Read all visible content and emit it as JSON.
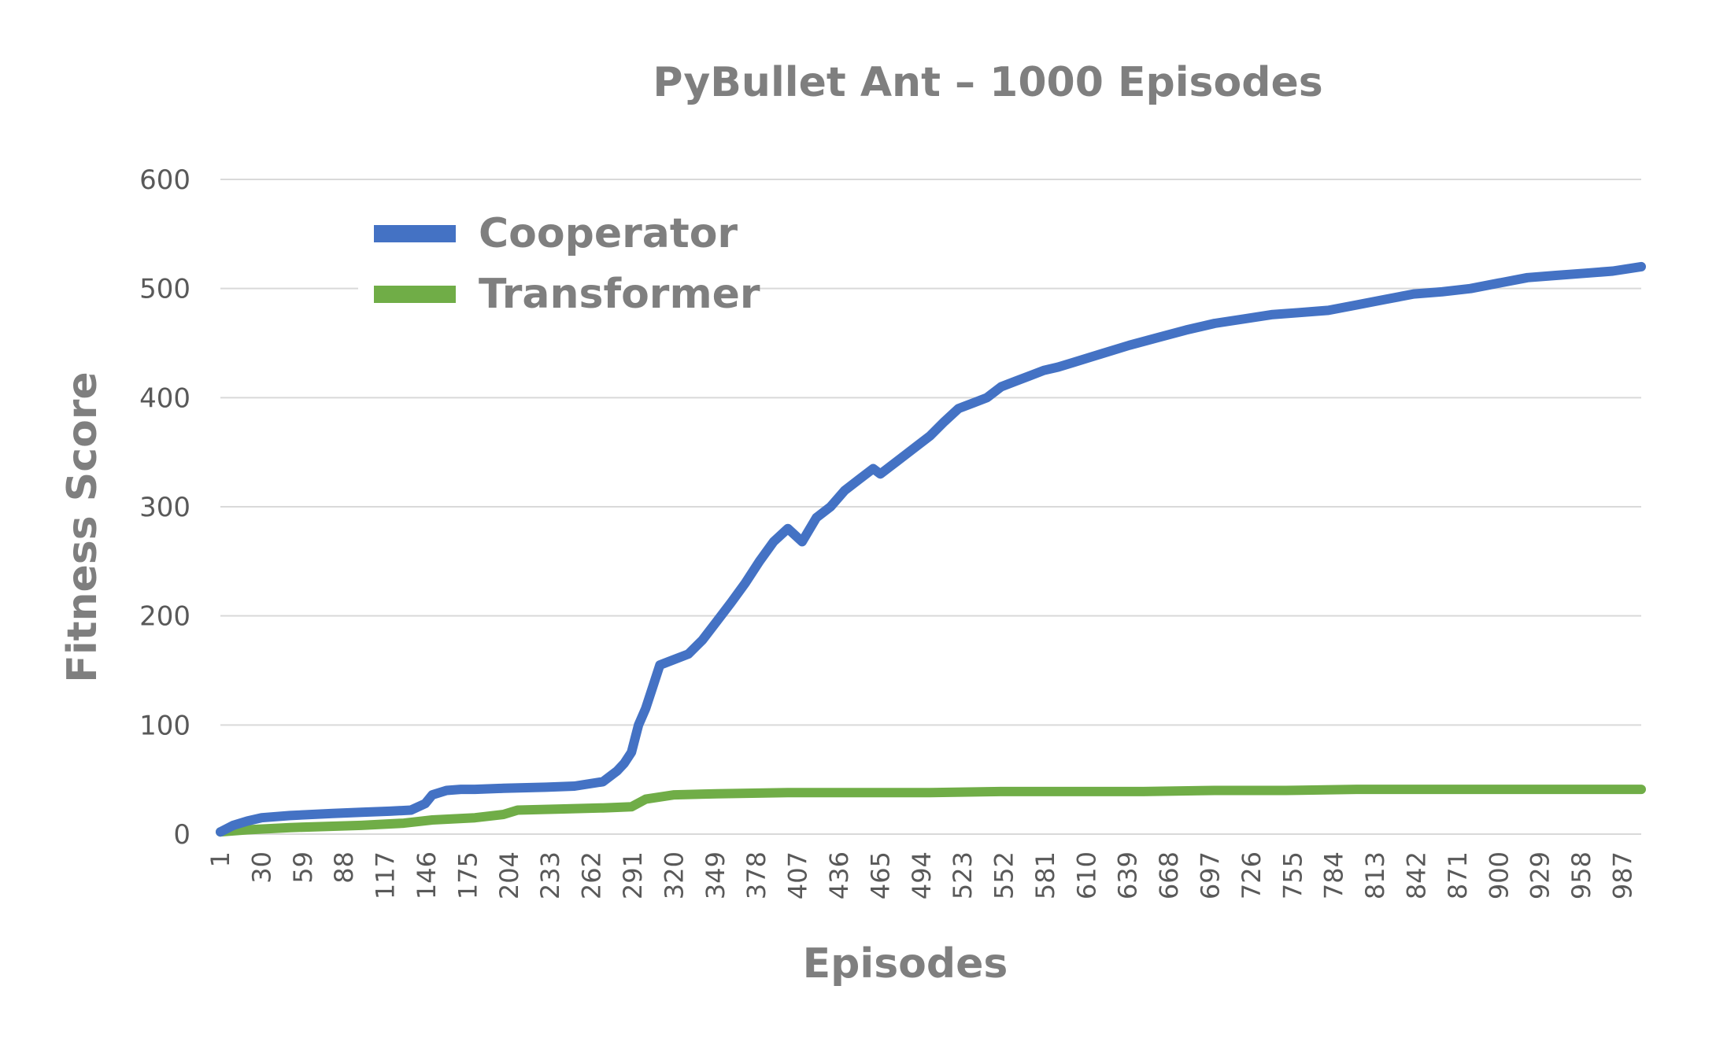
{
  "chart_data": {
    "type": "line",
    "title": "PyBullet Ant – 1000 Episodes",
    "xlabel": "Episodes",
    "ylabel": "Fitness Score",
    "xlim": [
      1,
      1000
    ],
    "ylim": [
      0,
      600
    ],
    "y_ticks": [
      0,
      100,
      200,
      300,
      400,
      500,
      600
    ],
    "x_ticks": [
      1,
      30,
      59,
      88,
      117,
      146,
      175,
      204,
      233,
      262,
      291,
      320,
      349,
      378,
      407,
      436,
      465,
      494,
      523,
      552,
      581,
      610,
      639,
      668,
      697,
      726,
      755,
      784,
      813,
      842,
      871,
      900,
      929,
      958,
      987
    ],
    "grid": "horizontal",
    "legend_position": "top-left",
    "series": [
      {
        "name": "Cooperator",
        "color": "#4472C4",
        "x": [
          1,
          10,
          20,
          30,
          50,
          80,
          100,
          120,
          135,
          145,
          150,
          160,
          170,
          180,
          200,
          230,
          250,
          270,
          280,
          285,
          290,
          295,
          300,
          305,
          310,
          320,
          330,
          340,
          350,
          360,
          370,
          380,
          390,
          400,
          410,
          420,
          430,
          440,
          450,
          460,
          465,
          470,
          480,
          490,
          500,
          510,
          520,
          530,
          540,
          550,
          560,
          570,
          580,
          590,
          600,
          620,
          640,
          660,
          680,
          700,
          720,
          740,
          760,
          780,
          800,
          820,
          840,
          860,
          880,
          900,
          920,
          940,
          960,
          980,
          1000
        ],
        "y": [
          2,
          8,
          12,
          15,
          17,
          19,
          20,
          21,
          22,
          28,
          36,
          40,
          41,
          41,
          42,
          43,
          44,
          48,
          58,
          65,
          75,
          100,
          115,
          135,
          155,
          160,
          165,
          178,
          195,
          212,
          230,
          250,
          268,
          280,
          268,
          290,
          300,
          315,
          325,
          335,
          330,
          335,
          345,
          355,
          365,
          378,
          390,
          395,
          400,
          410,
          415,
          420,
          425,
          428,
          432,
          440,
          448,
          455,
          462,
          468,
          472,
          476,
          478,
          480,
          485,
          490,
          495,
          497,
          500,
          505,
          510,
          512,
          514,
          516,
          520
        ]
      },
      {
        "name": "Transformer",
        "color": "#70AD47",
        "x": [
          1,
          20,
          50,
          100,
          130,
          150,
          180,
          200,
          210,
          240,
          270,
          290,
          300,
          320,
          350,
          400,
          450,
          500,
          550,
          600,
          650,
          700,
          750,
          800,
          850,
          900,
          950,
          1000
        ],
        "y": [
          2,
          4,
          6,
          8,
          10,
          13,
          15,
          18,
          22,
          23,
          24,
          25,
          32,
          36,
          37,
          38,
          38,
          38,
          39,
          39,
          39,
          40,
          40,
          41,
          41,
          41,
          41,
          41
        ]
      }
    ]
  }
}
